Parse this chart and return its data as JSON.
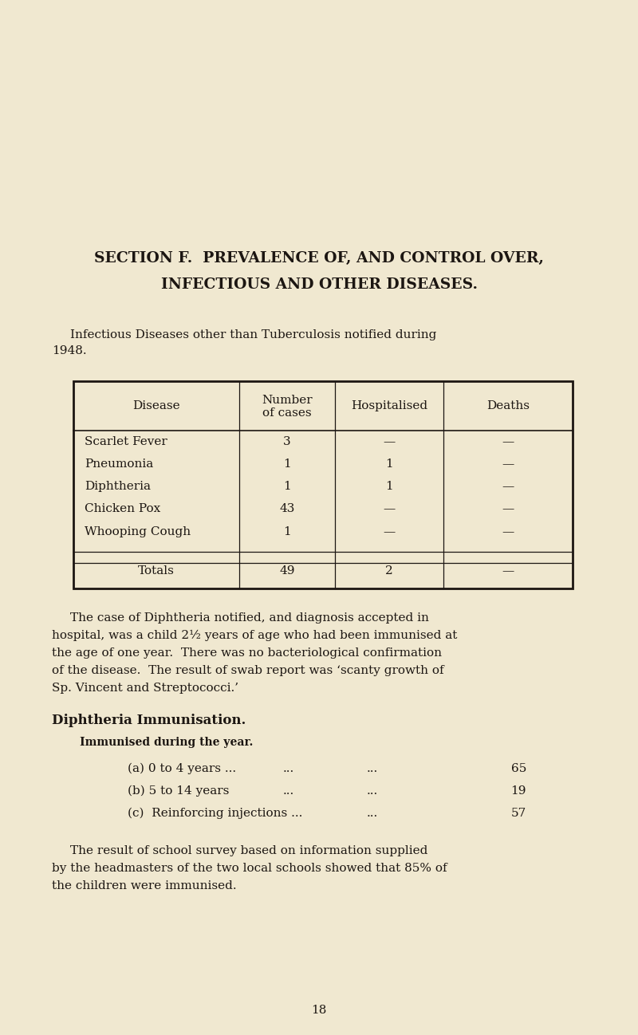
{
  "bg_color": "#f0e8d0",
  "title_line1": "SECTION F.  PREVALENCE OF, AND CONTROL OVER,",
  "title_line2": "INFECTIOUS AND OTHER DISEASES.",
  "intro_line1": "Infectious Diseases other than Tuberculosis notified during",
  "intro_line2": "1948.",
  "table_headers": [
    "Disease",
    "Number\nof cases",
    "Hospitalised",
    "Deaths"
  ],
  "table_rows": [
    [
      "Scarlet Fever",
      "3",
      "—",
      "—"
    ],
    [
      "Pneumonia",
      "1",
      "1",
      "—"
    ],
    [
      "Diphtheria",
      "1",
      "1",
      "—"
    ],
    [
      "Chicken Pox",
      "43",
      "—",
      "—"
    ],
    [
      "Whooping Cough",
      "1",
      "—",
      "—"
    ]
  ],
  "table_totals": [
    "Totals",
    "49",
    "2",
    "—"
  ],
  "para1_lines": [
    "The case of Diphtheria notified, and diagnosis accepted in",
    "hospital, was a child 2½ years of age who had been immunised at",
    "the age of one year.  There was no bacteriological confirmation",
    "of the disease.  The result of swab report was ‘scanty growth of",
    "Sp. Vincent and Streptococci.’"
  ],
  "section2_title": "Diphtheria Immunisation.",
  "section2_subtitle": "Immunised during the year.",
  "imm_a_label": "(a) 0 to 4 years ...",
  "imm_a_dots": "...          ...",
  "imm_a_val": "65",
  "imm_b_label": "(b) 5 to 14 years",
  "imm_b_dots": "...         ...",
  "imm_b_val": "19",
  "imm_c_label": "(c)  Reinforcing injections ...",
  "imm_c_dots": "...",
  "imm_c_val": "57",
  "para2_lines": [
    "The result of school survey based on information supplied",
    "by the headmasters of the two local schools showed that 85% of",
    "the children were immunised."
  ],
  "page_number": "18",
  "text_color": "#1c1612"
}
